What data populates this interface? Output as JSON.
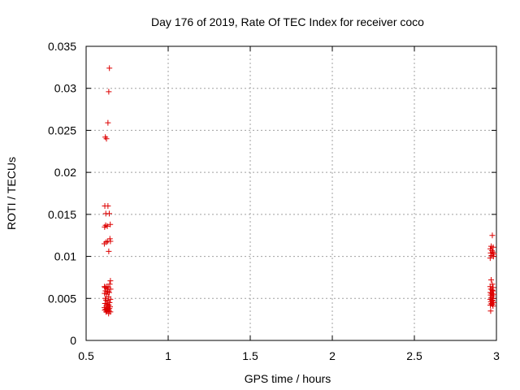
{
  "chart_data": {
    "type": "scatter",
    "title": "Day 176 of 2019, Rate Of TEC Index for receiver coco",
    "xlabel": "GPS time / hours",
    "ylabel": "ROTI / TECUs",
    "xlim": [
      0.5,
      3.0
    ],
    "ylim": [
      0,
      0.035
    ],
    "xticks": [
      0.5,
      1,
      1.5,
      2,
      2.5,
      3
    ],
    "xtick_labels": [
      "0.5",
      "1",
      "1.5",
      "2",
      "2.5",
      "3"
    ],
    "yticks": [
      0,
      0.005,
      0.01,
      0.015,
      0.02,
      0.025,
      0.03,
      0.035
    ],
    "ytick_labels": [
      "0",
      "0.005",
      "0.01",
      "0.015",
      "0.02",
      "0.025",
      "0.03",
      "0.035"
    ],
    "grid": true,
    "marker": "+",
    "color": "#dd0000",
    "series": [
      {
        "name": "ROTI",
        "points": [
          [
            0.642,
            0.0324
          ],
          [
            0.638,
            0.0296
          ],
          [
            0.633,
            0.0259
          ],
          [
            0.617,
            0.0242
          ],
          [
            0.624,
            0.024
          ],
          [
            0.614,
            0.016
          ],
          [
            0.633,
            0.016
          ],
          [
            0.62,
            0.0151
          ],
          [
            0.641,
            0.0151
          ],
          [
            0.647,
            0.0138
          ],
          [
            0.619,
            0.0137
          ],
          [
            0.629,
            0.0136
          ],
          [
            0.613,
            0.0135
          ],
          [
            0.645,
            0.0121
          ],
          [
            0.632,
            0.0118
          ],
          [
            0.648,
            0.0118
          ],
          [
            0.622,
            0.0117
          ],
          [
            0.611,
            0.0115
          ],
          [
            0.638,
            0.0106
          ],
          [
            0.648,
            0.0071
          ],
          [
            0.644,
            0.0067
          ],
          [
            0.612,
            0.0064
          ],
          [
            0.624,
            0.0064
          ],
          [
            0.615,
            0.0063
          ],
          [
            0.634,
            0.0063
          ],
          [
            0.629,
            0.0061
          ],
          [
            0.649,
            0.0061
          ],
          [
            0.618,
            0.0059
          ],
          [
            0.632,
            0.0058
          ],
          [
            0.641,
            0.0057
          ],
          [
            0.613,
            0.0056
          ],
          [
            0.626,
            0.0055
          ],
          [
            0.637,
            0.0052
          ],
          [
            0.617,
            0.005
          ],
          [
            0.648,
            0.0049
          ],
          [
            0.621,
            0.0048
          ],
          [
            0.633,
            0.0047
          ],
          [
            0.643,
            0.0045
          ],
          [
            0.615,
            0.0044
          ],
          [
            0.628,
            0.0043
          ],
          [
            0.639,
            0.0042
          ],
          [
            0.623,
            0.0041
          ],
          [
            0.646,
            0.004
          ],
          [
            0.612,
            0.0039
          ],
          [
            0.631,
            0.0038
          ],
          [
            0.642,
            0.0038
          ],
          [
            0.619,
            0.0037
          ],
          [
            0.635,
            0.0037
          ],
          [
            0.626,
            0.0036
          ],
          [
            0.614,
            0.0036
          ],
          [
            0.64,
            0.0035
          ],
          [
            0.629,
            0.0035
          ],
          [
            0.648,
            0.0034
          ],
          [
            0.622,
            0.0034
          ],
          [
            0.637,
            0.0032
          ],
          [
            2.975,
            0.0125
          ],
          [
            2.968,
            0.0112
          ],
          [
            2.98,
            0.0111
          ],
          [
            2.963,
            0.0109
          ],
          [
            2.972,
            0.0107
          ],
          [
            2.978,
            0.0105
          ],
          [
            2.965,
            0.0104
          ],
          [
            2.985,
            0.0103
          ],
          [
            2.97,
            0.0101
          ],
          [
            2.982,
            0.01
          ],
          [
            2.962,
            0.0098
          ],
          [
            2.968,
            0.0072
          ],
          [
            2.975,
            0.0067
          ],
          [
            2.962,
            0.0064
          ],
          [
            2.98,
            0.0063
          ],
          [
            2.966,
            0.0061
          ],
          [
            2.974,
            0.006
          ],
          [
            2.978,
            0.0059
          ],
          [
            2.963,
            0.0057
          ],
          [
            2.971,
            0.0056
          ],
          [
            2.983,
            0.0055
          ],
          [
            2.965,
            0.0054
          ],
          [
            2.976,
            0.0053
          ],
          [
            2.969,
            0.0051
          ],
          [
            2.98,
            0.005
          ],
          [
            2.962,
            0.0049
          ],
          [
            2.973,
            0.0048
          ],
          [
            2.978,
            0.0047
          ],
          [
            2.966,
            0.0046
          ],
          [
            2.982,
            0.0045
          ],
          [
            2.97,
            0.0044
          ],
          [
            2.975,
            0.0043
          ],
          [
            2.963,
            0.0042
          ],
          [
            2.979,
            0.0041
          ],
          [
            2.965,
            0.0035
          ]
        ]
      }
    ]
  }
}
